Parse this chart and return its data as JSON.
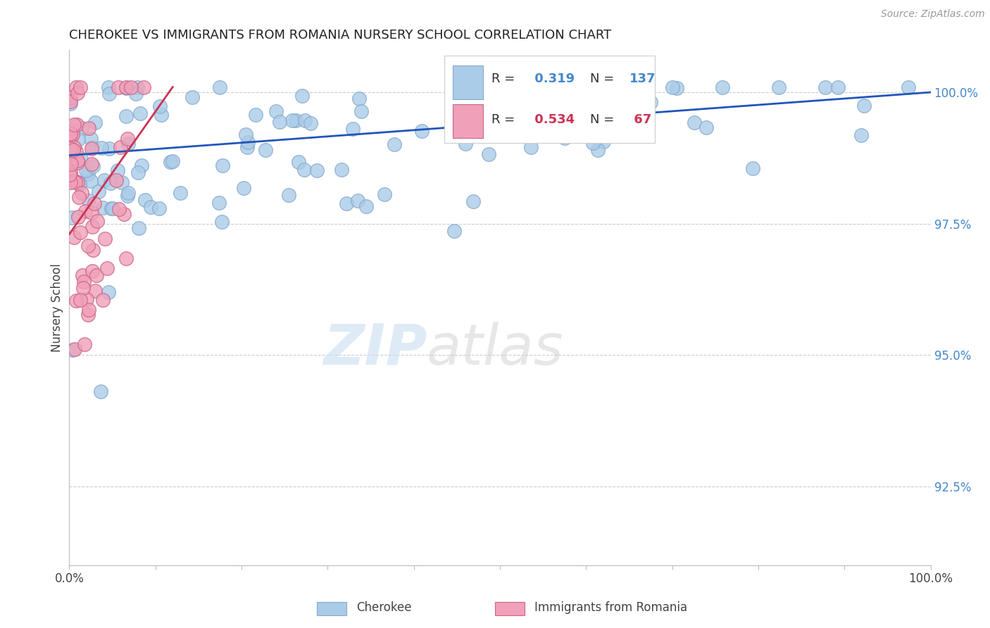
{
  "title": "CHEROKEE VS IMMIGRANTS FROM ROMANIA NURSERY SCHOOL CORRELATION CHART",
  "source": "Source: ZipAtlas.com",
  "ylabel": "Nursery School",
  "xlim": [
    0.0,
    1.0
  ],
  "ylim": [
    0.91,
    1.008
  ],
  "blue_R": 0.319,
  "blue_N": 137,
  "pink_R": 0.534,
  "pink_N": 67,
  "blue_color": "#aacce8",
  "blue_edge": "#88aacc",
  "pink_color": "#f0a0b8",
  "pink_edge": "#cc6688",
  "blue_line_color": "#2255bb",
  "pink_line_color": "#cc3355",
  "ytick_values": [
    0.925,
    0.95,
    0.975,
    1.0
  ],
  "ytick_labels": [
    "92.5%",
    "95.0%",
    "97.5%",
    "100.0%"
  ],
  "ytick_color": "#4488cc",
  "legend_label_blue": "Cherokee",
  "legend_label_pink": "Immigrants from Romania"
}
